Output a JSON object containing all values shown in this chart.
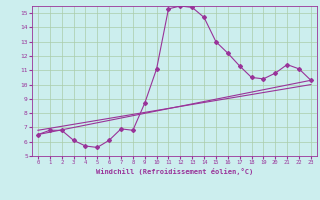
{
  "xlabel": "Windchill (Refroidissement éolien,°C)",
  "bg_color": "#cceeee",
  "grid_color": "#aaccaa",
  "line_color": "#993399",
  "xlim": [
    -0.5,
    23.5
  ],
  "ylim": [
    5,
    15.5
  ],
  "xticks": [
    0,
    1,
    2,
    3,
    4,
    5,
    6,
    7,
    8,
    9,
    10,
    11,
    12,
    13,
    14,
    15,
    16,
    17,
    18,
    19,
    20,
    21,
    22,
    23
  ],
  "yticks": [
    5,
    6,
    7,
    8,
    9,
    10,
    11,
    12,
    13,
    14,
    15
  ],
  "data_x": [
    0,
    1,
    2,
    3,
    4,
    5,
    6,
    7,
    8,
    9,
    10,
    11,
    12,
    13,
    14,
    15,
    16,
    17,
    18,
    19,
    20,
    21,
    22,
    23
  ],
  "data_y": [
    6.5,
    6.8,
    6.8,
    6.1,
    5.7,
    5.6,
    6.1,
    6.9,
    6.8,
    8.7,
    11.1,
    15.3,
    15.5,
    15.4,
    14.7,
    13.0,
    12.2,
    11.3,
    10.5,
    10.4,
    10.8,
    11.4,
    11.1,
    10.3
  ],
  "line1_x": [
    0,
    23
  ],
  "line1_y": [
    6.5,
    10.3
  ],
  "line2_x": [
    0,
    23
  ],
  "line2_y": [
    6.8,
    10.0
  ]
}
